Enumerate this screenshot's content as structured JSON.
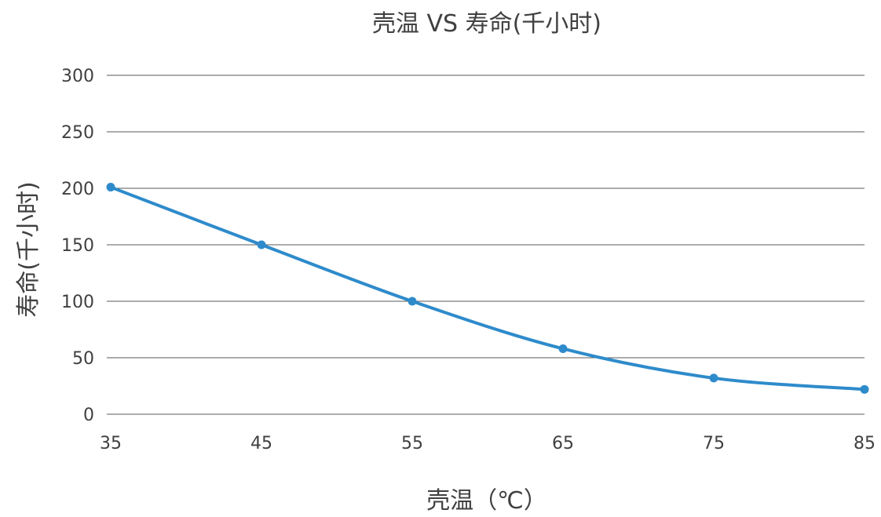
{
  "chart_data": {
    "type": "line",
    "title": "壳温  VS 寿命(千小时)",
    "xlabel": "壳温（℃）",
    "ylabel": "寿命(千小时)",
    "categories": [
      "35",
      "45",
      "55",
      "65",
      "75",
      "85"
    ],
    "series": [
      {
        "values": [
          201,
          150,
          100,
          58,
          32,
          22
        ],
        "color": "#2E8BCB"
      }
    ],
    "ylim": [
      0,
      300
    ],
    "yticks": [
      0,
      50,
      100,
      150,
      200,
      250,
      300
    ],
    "grid": true,
    "smooth": true,
    "markers": true,
    "legend": "none"
  }
}
